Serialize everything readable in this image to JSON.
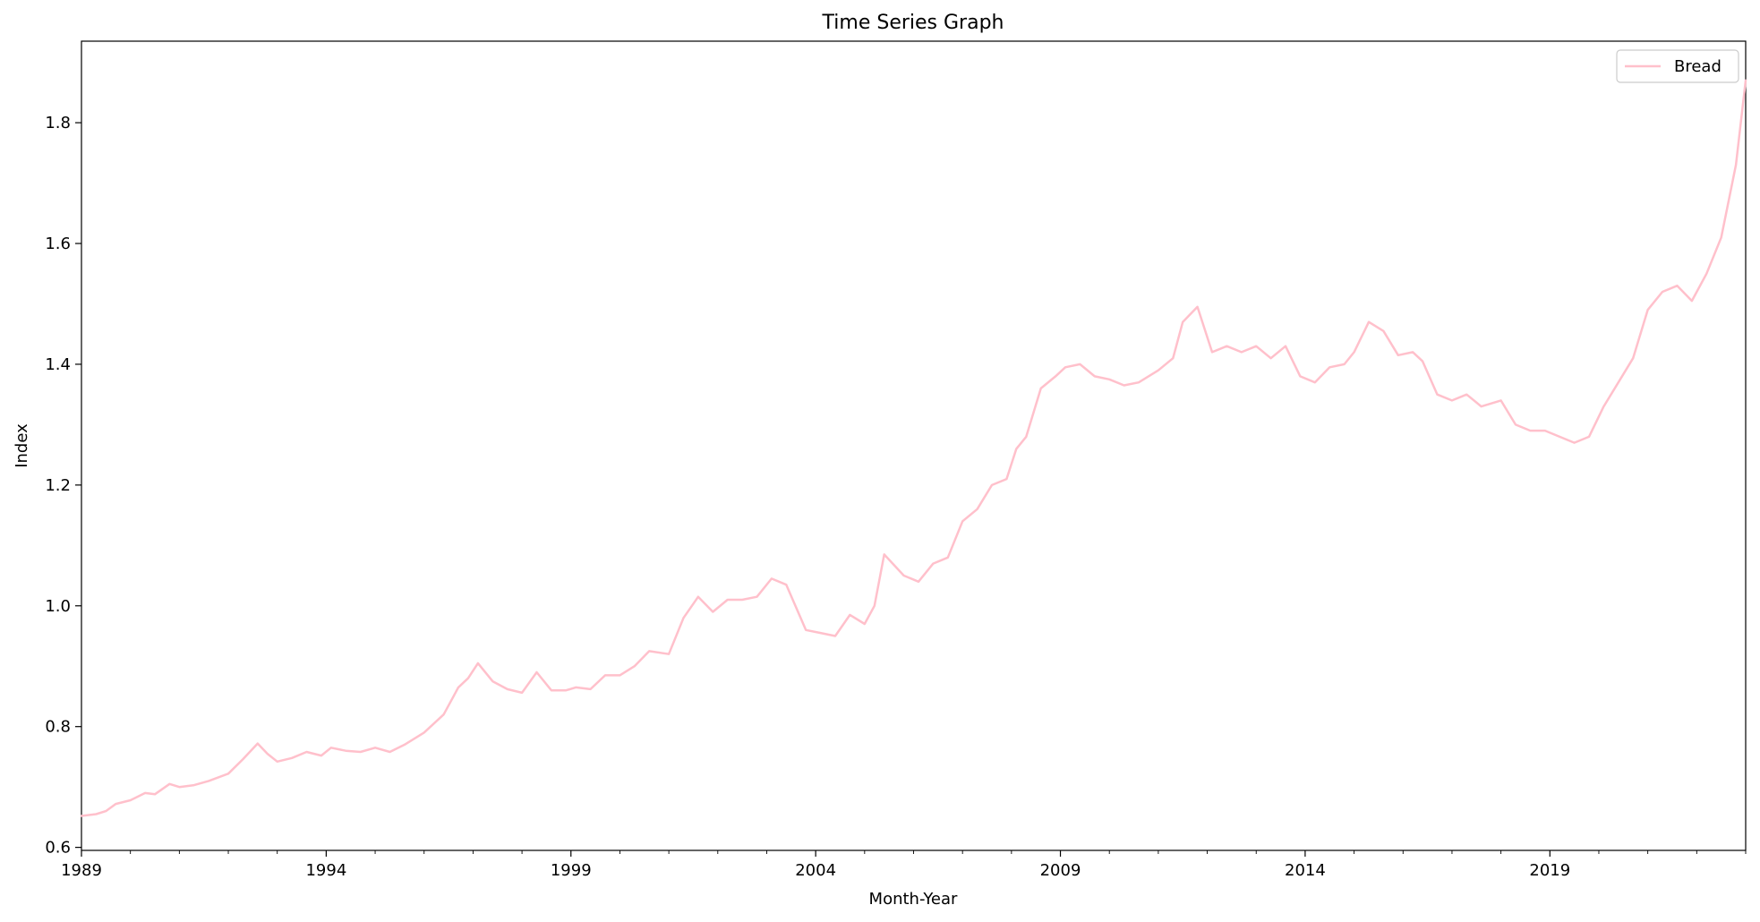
{
  "chart_data": {
    "type": "line",
    "title": "Time Series Graph",
    "xlabel": "Month-Year",
    "ylabel": "Index",
    "xlim": [
      1989.0,
      2023.0
    ],
    "ylim": [
      0.595,
      1.935
    ],
    "x_ticks": [
      1989,
      1994,
      1999,
      2004,
      2009,
      2014,
      2019
    ],
    "x_tick_labels": [
      "1989",
      "1994",
      "1999",
      "2004",
      "2009",
      "2014",
      "2019"
    ],
    "y_ticks": [
      0.6,
      0.8,
      1.0,
      1.2,
      1.4,
      1.6,
      1.8
    ],
    "y_tick_labels": [
      "0.6",
      "0.8",
      "1.0",
      "1.2",
      "1.4",
      "1.6",
      "1.8"
    ],
    "grid": false,
    "legend_position": "top-right",
    "series": [
      {
        "name": "Bread",
        "color": "#ffc0cb",
        "x": [
          1989.0,
          1989.3,
          1989.5,
          1989.7,
          1990.0,
          1990.3,
          1990.5,
          1990.8,
          1991.0,
          1991.3,
          1991.6,
          1992.0,
          1992.3,
          1992.6,
          1992.8,
          1993.0,
          1993.3,
          1993.6,
          1993.9,
          1994.1,
          1994.4,
          1994.7,
          1995.0,
          1995.3,
          1995.6,
          1996.0,
          1996.4,
          1996.7,
          1996.9,
          1997.1,
          1997.4,
          1997.7,
          1998.0,
          1998.3,
          1998.6,
          1998.9,
          1999.1,
          1999.4,
          1999.7,
          2000.0,
          2000.3,
          2000.6,
          2001.0,
          2001.3,
          2001.6,
          2001.9,
          2002.2,
          2002.5,
          2002.8,
          2003.1,
          2003.4,
          2003.8,
          2004.1,
          2004.4,
          2004.7,
          2005.0,
          2005.2,
          2005.4,
          2005.8,
          2006.1,
          2006.4,
          2006.7,
          2007.0,
          2007.3,
          2007.6,
          2007.9,
          2008.1,
          2008.3,
          2008.6,
          2008.9,
          2009.1,
          2009.4,
          2009.7,
          2010.0,
          2010.3,
          2010.6,
          2011.0,
          2011.3,
          2011.5,
          2011.8,
          2012.1,
          2012.4,
          2012.7,
          2013.0,
          2013.3,
          2013.6,
          2013.9,
          2014.2,
          2014.5,
          2014.8,
          2015.0,
          2015.3,
          2015.6,
          2015.9,
          2016.2,
          2016.4,
          2016.7,
          2017.0,
          2017.3,
          2017.6,
          2018.0,
          2018.3,
          2018.6,
          2018.9,
          2019.2,
          2019.5,
          2019.8,
          2020.1,
          2020.4,
          2020.7,
          2021.0,
          2021.3,
          2021.6,
          2021.9,
          2022.2,
          2022.5,
          2022.8,
          2023.0
        ],
        "values": [
          0.652,
          0.655,
          0.66,
          0.672,
          0.678,
          0.69,
          0.688,
          0.705,
          0.7,
          0.703,
          0.71,
          0.722,
          0.746,
          0.772,
          0.755,
          0.742,
          0.748,
          0.758,
          0.752,
          0.765,
          0.76,
          0.758,
          0.765,
          0.758,
          0.77,
          0.79,
          0.82,
          0.865,
          0.88,
          0.905,
          0.875,
          0.862,
          0.856,
          0.89,
          0.86,
          0.86,
          0.865,
          0.862,
          0.885,
          0.885,
          0.9,
          0.925,
          0.92,
          0.98,
          1.015,
          0.99,
          1.01,
          1.01,
          1.015,
          1.045,
          1.035,
          0.96,
          0.955,
          0.95,
          0.985,
          0.97,
          1.0,
          1.085,
          1.05,
          1.04,
          1.07,
          1.08,
          1.14,
          1.16,
          1.2,
          1.21,
          1.26,
          1.28,
          1.36,
          1.38,
          1.395,
          1.4,
          1.38,
          1.375,
          1.365,
          1.37,
          1.39,
          1.41,
          1.47,
          1.495,
          1.42,
          1.43,
          1.42,
          1.43,
          1.41,
          1.43,
          1.38,
          1.37,
          1.395,
          1.4,
          1.42,
          1.47,
          1.455,
          1.415,
          1.42,
          1.405,
          1.35,
          1.34,
          1.35,
          1.33,
          1.34,
          1.3,
          1.29,
          1.29,
          1.28,
          1.27,
          1.28,
          1.33,
          1.37,
          1.41,
          1.49,
          1.52,
          1.53,
          1.505,
          1.55,
          1.61,
          1.73,
          1.87
        ]
      }
    ]
  }
}
